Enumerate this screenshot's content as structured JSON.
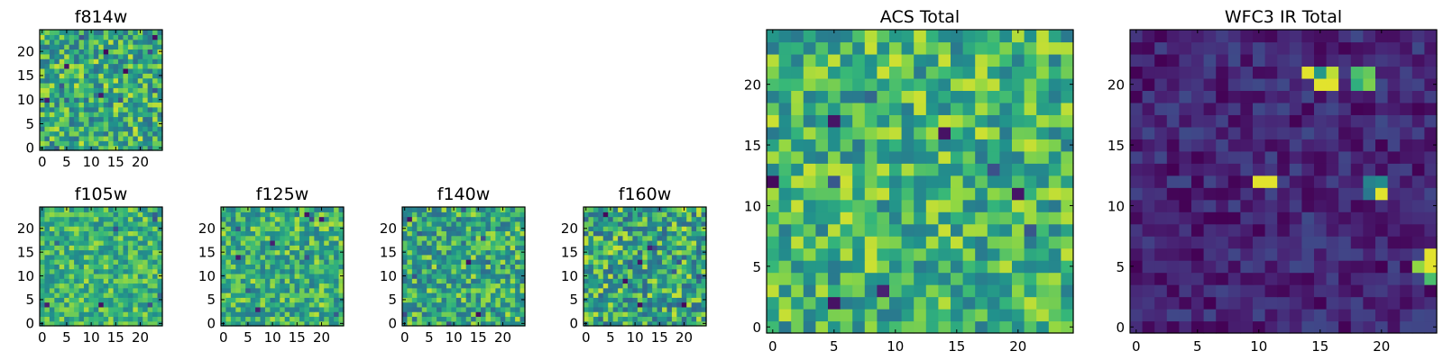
{
  "chart_data": [
    {
      "type": "heatmap",
      "title": "f814w",
      "grid_size": 25,
      "seed": 814,
      "colormap": "viridis",
      "value_range": [
        0.45,
        0.95
      ],
      "outliers": 14,
      "xlim": [
        0,
        24
      ],
      "ylim": [
        0,
        24
      ],
      "x_ticks": [
        "0",
        "5",
        "10",
        "15",
        "20"
      ],
      "y_ticks": [
        "0",
        "5",
        "10",
        "15",
        "20"
      ],
      "xlabel": "",
      "ylabel": ""
    },
    {
      "type": "heatmap",
      "title": "f105w",
      "grid_size": 25,
      "seed": 105,
      "colormap": "viridis",
      "value_range": [
        0.55,
        0.92
      ],
      "outliers": 8,
      "xlim": [
        0,
        24
      ],
      "ylim": [
        0,
        24
      ],
      "x_ticks": [
        "0",
        "5",
        "10",
        "15",
        "20"
      ],
      "y_ticks": [
        "0",
        "5",
        "10",
        "15",
        "20"
      ],
      "xlabel": "",
      "ylabel": ""
    },
    {
      "type": "heatmap",
      "title": "f125w",
      "grid_size": 25,
      "seed": 125,
      "colormap": "viridis",
      "value_range": [
        0.5,
        0.93
      ],
      "outliers": 10,
      "xlim": [
        0,
        24
      ],
      "ylim": [
        0,
        24
      ],
      "x_ticks": [
        "0",
        "5",
        "10",
        "15",
        "20"
      ],
      "y_ticks": [
        "0",
        "5",
        "10",
        "15",
        "20"
      ],
      "xlabel": "",
      "ylabel": ""
    },
    {
      "type": "heatmap",
      "title": "f140w",
      "grid_size": 25,
      "seed": 140,
      "colormap": "viridis",
      "value_range": [
        0.45,
        0.93
      ],
      "outliers": 11,
      "xlim": [
        0,
        24
      ],
      "ylim": [
        0,
        24
      ],
      "x_ticks": [
        "0",
        "5",
        "10",
        "15",
        "20"
      ],
      "y_ticks": [
        "0",
        "5",
        "10",
        "15",
        "20"
      ],
      "xlabel": "",
      "ylabel": ""
    },
    {
      "type": "heatmap",
      "title": "f160w",
      "grid_size": 25,
      "seed": 160,
      "colormap": "viridis",
      "value_range": [
        0.4,
        0.95
      ],
      "outliers": 14,
      "xlim": [
        0,
        24
      ],
      "ylim": [
        0,
        24
      ],
      "x_ticks": [
        "0",
        "5",
        "10",
        "15",
        "20"
      ],
      "y_ticks": [
        "0",
        "5",
        "10",
        "15",
        "20"
      ],
      "xlabel": "",
      "ylabel": ""
    },
    {
      "type": "heatmap",
      "title": "ACS Total",
      "grid_size": 25,
      "seed": 901,
      "colormap": "viridis",
      "value_range": [
        0.5,
        0.95
      ],
      "outliers": 10,
      "xlim": [
        0,
        24
      ],
      "ylim": [
        0,
        24
      ],
      "x_ticks": [
        "0",
        "5",
        "10",
        "15",
        "20"
      ],
      "y_ticks": [
        "0",
        "5",
        "10",
        "15",
        "20"
      ],
      "xlabel": "",
      "ylabel": ""
    },
    {
      "type": "heatmap",
      "title": "WFC3 IR Total",
      "grid_size": 25,
      "seed": 902,
      "colormap": "viridis",
      "value_range": [
        0.0,
        0.28
      ],
      "outliers": 0,
      "highlights": [
        {
          "col": 14,
          "row": 21,
          "value": 0.97
        },
        {
          "col": 15,
          "row": 21,
          "value": 0.65
        },
        {
          "col": 16,
          "row": 21,
          "value": 0.93
        },
        {
          "col": 15,
          "row": 20,
          "value": 0.97
        },
        {
          "col": 16,
          "row": 20,
          "value": 0.97
        },
        {
          "col": 18,
          "row": 21,
          "value": 0.78
        },
        {
          "col": 19,
          "row": 21,
          "value": 0.82
        },
        {
          "col": 18,
          "row": 20,
          "value": 0.72
        },
        {
          "col": 19,
          "row": 20,
          "value": 0.85
        },
        {
          "col": 10,
          "row": 12,
          "value": 0.97
        },
        {
          "col": 11,
          "row": 12,
          "value": 0.97
        },
        {
          "col": 19,
          "row": 12,
          "value": 0.55
        },
        {
          "col": 20,
          "row": 12,
          "value": 0.6
        },
        {
          "col": 19,
          "row": 11,
          "value": 0.5
        },
        {
          "col": 20,
          "row": 11,
          "value": 0.97
        },
        {
          "col": 24,
          "row": 6,
          "value": 0.97
        },
        {
          "col": 23,
          "row": 5,
          "value": 0.88
        },
        {
          "col": 24,
          "row": 5,
          "value": 0.97
        },
        {
          "col": 24,
          "row": 4,
          "value": 0.78
        }
      ],
      "xlim": [
        0,
        24
      ],
      "ylim": [
        0,
        24
      ],
      "x_ticks": [
        "0",
        "5",
        "10",
        "15",
        "20"
      ],
      "y_ticks": [
        "0",
        "5",
        "10",
        "15",
        "20"
      ],
      "xlabel": "",
      "ylabel": ""
    }
  ]
}
